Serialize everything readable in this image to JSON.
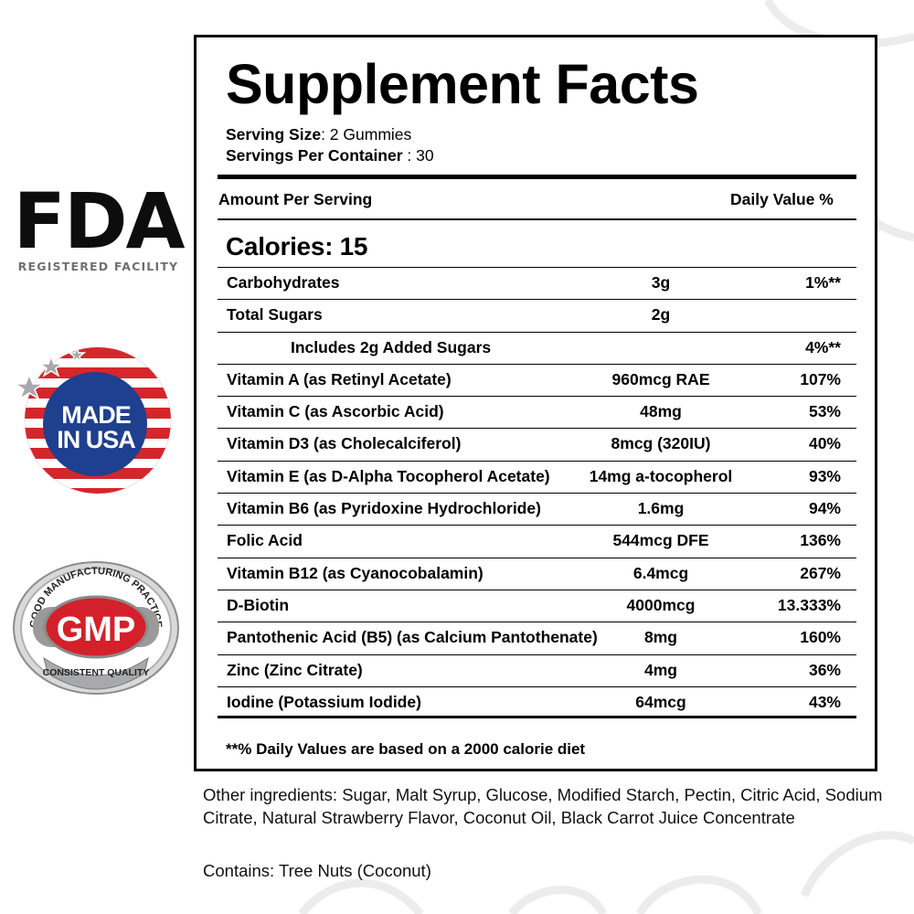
{
  "badges": {
    "fda_mark": "FDA",
    "fda_sub": "REGISTERED FACILITY",
    "usa_line1": "MADE",
    "usa_line2": "IN USA",
    "gmp_center": "GMP",
    "gmp_top_arc": "GOOD MANUFACTURING PRACTICE",
    "gmp_bottom": "CONSISTENT QUALITY",
    "colors": {
      "flag_red": "#d5262c",
      "flag_blue": "#1f3f8f",
      "gmp_red": "#d4202a",
      "silver": "#a7a9ac"
    }
  },
  "label": {
    "title": "Supplement Facts",
    "serving_size_label": "Serving Size",
    "serving_size_value": ": 2 Gummies",
    "servings_per_container_label": "Servings Per Container",
    "servings_per_container_value": " : 30",
    "amount_header": "Amount Per Serving",
    "dv_header": "Daily Value %",
    "calories": "Calories: 15",
    "nutrients": [
      {
        "name": "Carbohydrates",
        "amount": "3g",
        "dv": "1%**"
      },
      {
        "name": "Total Sugars",
        "amount": "2g",
        "dv": ""
      },
      {
        "name": "Includes 2g Added Sugars",
        "amount": "",
        "dv": "4%**"
      },
      {
        "name": "Vitamin A (as Retinyl Acetate)",
        "amount": "960mcg RAE",
        "dv": "107%"
      },
      {
        "name": "Vitamin C (as Ascorbic Acid)",
        "amount": "48mg",
        "dv": "53%"
      },
      {
        "name": "Vitamin D3 (as Cholecalciferol)",
        "amount": "8mcg (320IU)",
        "dv": "40%"
      },
      {
        "name": "Vitamin E (as D-Alpha Tocopherol Acetate)",
        "amount": "14mg a-tocopherol",
        "dv": "93%"
      },
      {
        "name": "Vitamin B6 (as Pyridoxine Hydrochloride)",
        "amount": "1.6mg",
        "dv": "94%"
      },
      {
        "name": "Folic Acid",
        "amount": "544mcg DFE",
        "dv": "136%"
      },
      {
        "name": "Vitamin B12 (as Cyanocobalamin)",
        "amount": "6.4mcg",
        "dv": "267%"
      },
      {
        "name": "D-Biotin",
        "amount": "4000mcg",
        "dv": "13.333%"
      },
      {
        "name": "Pantothenic Acid (B5) (as Calcium Pantothenate)",
        "amount": "8mg",
        "dv": "160%"
      },
      {
        "name": "Zinc (Zinc Citrate)",
        "amount": "4mg",
        "dv": "36%"
      },
      {
        "name": "Iodine (Potassium Iodide)",
        "amount": "64mcg",
        "dv": "43%"
      }
    ],
    "footnote": "**% Daily Values are based on a 2000 calorie diet"
  },
  "other_ingredients": "Other ingredients: Sugar, Malt Syrup, Glucose, Modified Starch, Pectin, Citric Acid, Sodium Citrate, Natural Strawberry Flavor, Coconut Oil, Black Carrot Juice Concentrate",
  "contains": "Contains: Tree Nuts (Coconut)"
}
